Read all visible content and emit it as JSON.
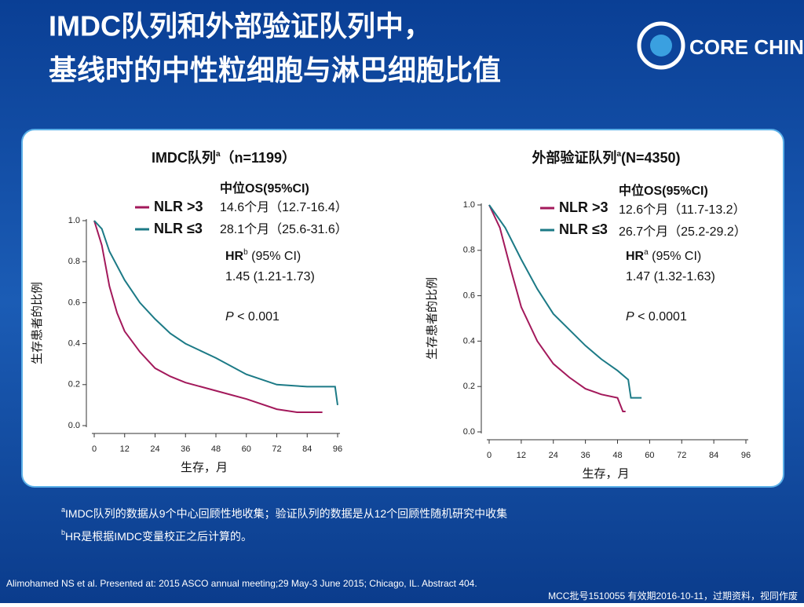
{
  "header": {
    "title_lines": [
      "IMDC队列和外部验证队列中，",
      "基线时的中性粒细胞与淋巴细胞比值"
    ],
    "logo": "CORE CHINA"
  },
  "chart_data": [
    {
      "type": "line",
      "title": "IMDC队列",
      "title_note": "a",
      "title_suffix": "（n=1199）",
      "x_label": "生存，月",
      "y_label": "生存患者的比例",
      "xlim": [
        0,
        96
      ],
      "xticks": [
        0,
        12,
        24,
        36,
        48,
        60,
        72,
        84,
        96
      ],
      "ylim": [
        0,
        1
      ],
      "yticks": [
        {
          "value": 0,
          "label": "0.0"
        },
        {
          "value": 0.2,
          "label": "0.2"
        },
        {
          "value": 0.4,
          "label": "0.4"
        },
        {
          "value": 0.6,
          "label": "0.6"
        },
        {
          "value": 0.8,
          "label": "0.8"
        },
        {
          "value": 1,
          "label": "1.0"
        }
      ],
      "series": [
        {
          "name": "NLR >3",
          "color": "#a3195b",
          "x": [
            0,
            3,
            6,
            9,
            12,
            18,
            24,
            30,
            36,
            48,
            60,
            72,
            80,
            90
          ],
          "values": [
            1,
            0.88,
            0.68,
            0.55,
            0.46,
            0.36,
            0.28,
            0.24,
            0.21,
            0.17,
            0.13,
            0.08,
            0.065,
            0.065
          ]
        },
        {
          "name": "NLR ≤3",
          "color": "#1c7a86",
          "x": [
            0,
            3,
            6,
            12,
            18,
            24,
            30,
            36,
            48,
            60,
            72,
            84,
            95,
            96
          ],
          "values": [
            1,
            0.96,
            0.85,
            0.71,
            0.6,
            0.52,
            0.45,
            0.4,
            0.33,
            0.25,
            0.2,
            0.19,
            0.19,
            0.1
          ]
        }
      ],
      "annotations": {
        "os_header": "中位OS(95%CI)",
        "os_values": [
          "14.6个月（12.7-16.4）",
          "28.1个月（25.6-31.6）"
        ],
        "hr_label": "HR",
        "hr_note": "b",
        "hr_ci": " (95% CI)",
        "hr_value": "1.45 (1.21-1.73)",
        "p_label": "P",
        "p_value": " < 0.001"
      }
    },
    {
      "type": "line",
      "title": "外部验证队列",
      "title_note": "a",
      "title_suffix": "(N=4350)",
      "x_label": "生存，月",
      "y_label": "生存患者的比例",
      "xlim": [
        0,
        96
      ],
      "xticks": [
        0,
        12,
        24,
        36,
        48,
        60,
        72,
        84,
        96
      ],
      "ylim": [
        0,
        1
      ],
      "yticks": [
        {
          "value": 0,
          "label": "0.0"
        },
        {
          "value": 0.2,
          "label": "0.2"
        },
        {
          "value": 0.4,
          "label": "0.4"
        },
        {
          "value": 0.6,
          "label": "0.6"
        },
        {
          "value": 0.8,
          "label": "0.8"
        },
        {
          "value": 1,
          "label": "1.0"
        }
      ],
      "series": [
        {
          "name": "NLR >3",
          "color": "#a3195b",
          "x": [
            0,
            4,
            8,
            12,
            18,
            24,
            30,
            36,
            42,
            48,
            50,
            51
          ],
          "values": [
            1,
            0.9,
            0.72,
            0.55,
            0.4,
            0.3,
            0.24,
            0.19,
            0.165,
            0.15,
            0.09,
            0.09
          ]
        },
        {
          "name": "NLR ≤3",
          "color": "#1c7a86",
          "x": [
            0,
            6,
            12,
            18,
            24,
            30,
            36,
            42,
            48,
            52,
            53,
            57
          ],
          "values": [
            1,
            0.9,
            0.76,
            0.63,
            0.52,
            0.45,
            0.38,
            0.32,
            0.27,
            0.23,
            0.15,
            0.15
          ]
        }
      ],
      "annotations": {
        "os_header": "中位OS(95%CI)",
        "os_values": [
          "12.6个月（11.7-13.2）",
          "26.7个月（25.2-29.2）"
        ],
        "hr_label": "HR",
        "hr_note": "a",
        "hr_ci": " (95% CI)",
        "hr_value": "1.47 (1.32-1.63)",
        "p_label": "P",
        "p_value": " < 0.0001"
      }
    }
  ],
  "footnotes": [
    {
      "note": "a",
      "text": "IMDC队列的数据从9个中心回顾性地收集；验证队列的数据是从12个回顾性随机研究中收集"
    },
    {
      "note": "b",
      "text": "HR是根据IMDC变量校正之后计算的。"
    }
  ],
  "citation": "Alimohamed NS  et al. Presented at: 2015 ASCO annual meeting;29 May-3 June 2015; Chicago, IL. Abstract 404.",
  "disclaimer": "MCC批号1510055 有效期2016-10-11，过期资料，视同作废"
}
